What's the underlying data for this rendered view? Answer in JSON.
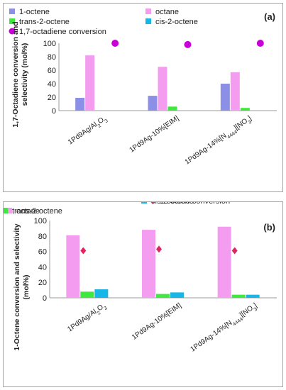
{
  "chart_data": [
    {
      "type": "bar",
      "panel_label": "(a)",
      "ylabel": "1,7-Octadiene conversion and selectivity (mol%)",
      "ylabel_lines": [
        "1,7-Octadiene conversion and",
        "selectivity (mol%)"
      ],
      "ylim": [
        0,
        100
      ],
      "yticks": [
        "0",
        "20",
        "40",
        "60",
        "80",
        "100"
      ],
      "grid": false,
      "legend_position": "top",
      "categories": [
        {
          "base": "1Pd9Ag/Al",
          "sub1": "2",
          "mid": "O",
          "sub2": "3",
          "tail": ""
        },
        {
          "base": "1Pd9Ag-10%[EIM]",
          "sub1": "",
          "mid": "",
          "sub2": "",
          "tail": ""
        },
        {
          "base": "1Pd9Ag-14%[N",
          "sub1": "4444",
          "mid": "][NO",
          "sub2": "3",
          "tail": "]"
        }
      ],
      "series": [
        {
          "name": "1-octene",
          "color": "#8b8fe6",
          "kind": "bar",
          "values": [
            19,
            22,
            40
          ]
        },
        {
          "name": "octane",
          "color": "#f49cf0",
          "kind": "bar",
          "values": [
            82,
            65,
            57
          ]
        },
        {
          "name": "trans-2-octene",
          "color": "#3ee83e",
          "kind": "bar",
          "values": [
            0,
            6,
            4
          ]
        },
        {
          "name": "cis-2-octene",
          "color": "#16b6e6",
          "kind": "bar",
          "values": [
            0,
            0,
            0
          ]
        },
        {
          "name": "1,7-octadiene conversion",
          "color": "#c800d8",
          "kind": "point",
          "marker": "circle",
          "values": [
            100,
            98,
            100
          ]
        }
      ]
    },
    {
      "type": "bar",
      "panel_label": "(b)",
      "ylabel": "1-Octene conversion and selectivity (mol%)",
      "ylabel_lines": [
        "1-Octene conversion and selectivity",
        "(mol%)"
      ],
      "ylim": [
        0,
        100
      ],
      "yticks": [
        "0",
        "20",
        "40",
        "60",
        "80",
        "100"
      ],
      "grid": false,
      "legend_position": "top",
      "categories": [
        {
          "base": "1Pd9Ag/Al",
          "sub1": "2",
          "mid": "O",
          "sub2": "3",
          "tail": ""
        },
        {
          "base": "1Pd9Ag-10%[EIM]",
          "sub1": "",
          "mid": "",
          "sub2": "",
          "tail": ""
        },
        {
          "base": "1Pd9Ag-14%[N",
          "sub1": "4444",
          "mid": "][NO",
          "sub2": "3",
          "tail": "]"
        }
      ],
      "series": [
        {
          "name": "octane",
          "color": "#f49cf0",
          "kind": "bar",
          "values": [
            81,
            88,
            92
          ]
        },
        {
          "name": "trans-2-octene",
          "color": "#3ee83e",
          "kind": "bar",
          "values": [
            8,
            5,
            4
          ]
        },
        {
          "name": "cis-2-octene",
          "color": "#16b6e6",
          "kind": "bar",
          "values": [
            11,
            7,
            4
          ]
        },
        {
          "name": "1-octene conversion",
          "color": "#e0245e",
          "kind": "point",
          "marker": "diamond",
          "values": [
            61,
            63,
            61
          ]
        }
      ]
    }
  ]
}
